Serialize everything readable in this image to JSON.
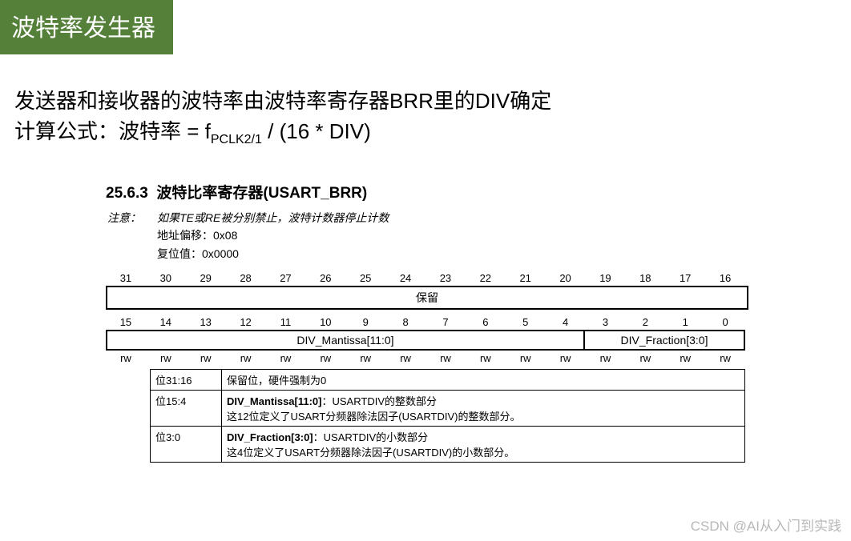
{
  "title": "波特率发生器",
  "body": {
    "line1": "发送器和接收器的波特率由波特率寄存器BRR里的DIV确定",
    "line2_prefix": "计算公式：波特率 = f",
    "line2_sub": "PCLK2/1",
    "line2_suffix": " / (16 * DIV)"
  },
  "register": {
    "heading_num": "25.6.3",
    "heading_txt": "波特比率寄存器(USART_BRR)",
    "notes_label": "注意：",
    "note1": "如果TE或RE被分别禁止，波特计数器停止计数",
    "note2": "地址偏移：0x08",
    "note3": "复位值：0x0000",
    "bits_hi": [
      "31",
      "30",
      "29",
      "28",
      "27",
      "26",
      "25",
      "24",
      "23",
      "22",
      "21",
      "20",
      "19",
      "18",
      "17",
      "16"
    ],
    "reserved_label": "保留",
    "bits_lo": [
      "15",
      "14",
      "13",
      "12",
      "11",
      "10",
      "9",
      "8",
      "7",
      "6",
      "5",
      "4",
      "3",
      "2",
      "1",
      "0"
    ],
    "mantissa_label": "DIV_Mantissa[11:0]",
    "fraction_label": "DIV_Fraction[3:0]",
    "rw": [
      "rw",
      "rw",
      "rw",
      "rw",
      "rw",
      "rw",
      "rw",
      "rw",
      "rw",
      "rw",
      "rw",
      "rw",
      "rw",
      "rw",
      "rw",
      "rw"
    ],
    "desc": [
      {
        "bits": "位31:16",
        "text": "保留位，硬件强制为0"
      },
      {
        "bits": "位15:4",
        "text": "<b>DIV_Mantissa[11:0]</b>：USARTDIV的整数部分<br>这12位定义了USART分频器除法因子(USARTDIV)的整数部分。"
      },
      {
        "bits": "位3:0",
        "text": "<b>DIV_Fraction[3:0]</b>：USARTDIV的小数部分<br>这4位定义了USART分频器除法因子(USARTDIV)的小数部分。"
      }
    ]
  },
  "watermark": "CSDN @AI从入门到实践",
  "colors": {
    "banner_bg": "#55803a",
    "banner_fg": "#ffffff",
    "text": "#000000",
    "wm": "#b8b8b8"
  }
}
